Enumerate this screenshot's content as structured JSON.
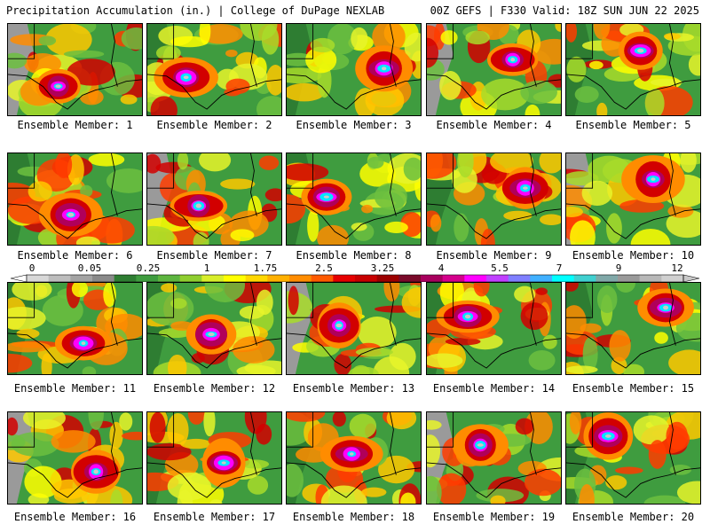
{
  "header": {
    "left": "Precipitation Accumulation (in.) | College of DuPage NEXLAB",
    "right": "00Z GEFS | F330 Valid: 18Z SUN JUN 22 2025"
  },
  "members": [
    {
      "label": "Ensemble Member: 1"
    },
    {
      "label": "Ensemble Member: 2"
    },
    {
      "label": "Ensemble Member: 3"
    },
    {
      "label": "Ensemble Member: 4"
    },
    {
      "label": "Ensemble Member: 5"
    },
    {
      "label": "Ensemble Member: 6"
    },
    {
      "label": "Ensemble Member: 7"
    },
    {
      "label": "Ensemble Member: 8"
    },
    {
      "label": "Ensemble Member: 9"
    },
    {
      "label": "Ensemble Member: 10"
    },
    {
      "label": "Ensemble Member: 11"
    },
    {
      "label": "Ensemble Member: 12"
    },
    {
      "label": "Ensemble Member: 13"
    },
    {
      "label": "Ensemble Member: 14"
    },
    {
      "label": "Ensemble Member: 15"
    },
    {
      "label": "Ensemble Member: 16"
    },
    {
      "label": "Ensemble Member: 17"
    },
    {
      "label": "Ensemble Member: 18"
    },
    {
      "label": "Ensemble Member: 19"
    },
    {
      "label": "Ensemble Member: 20"
    }
  ],
  "legend": {
    "labels": [
      "0",
      "0.05",
      "0.25",
      "1",
      "1.75",
      "2.5",
      "3.25",
      "4",
      "5.5",
      "7",
      "9",
      "12"
    ],
    "colors": [
      "#d8d8d8",
      "#bdbdbd",
      "#a3a3a3",
      "#8a8a8a",
      "#2e7d32",
      "#3f9c3f",
      "#5db53f",
      "#8fce2f",
      "#d8ee2a",
      "#ffff00",
      "#ffd700",
      "#ffb000",
      "#ff8c00",
      "#ff5a00",
      "#e60000",
      "#c80000",
      "#9c0000",
      "#7a0a2a",
      "#a8005e",
      "#d4008c",
      "#ff00ff",
      "#c040ff",
      "#7f7fff",
      "#40b0ff",
      "#00ffff",
      "#40d0d0",
      "#80a8a8",
      "#9a9a9a",
      "#b8b8b8",
      "#d0d0d0"
    ]
  }
}
